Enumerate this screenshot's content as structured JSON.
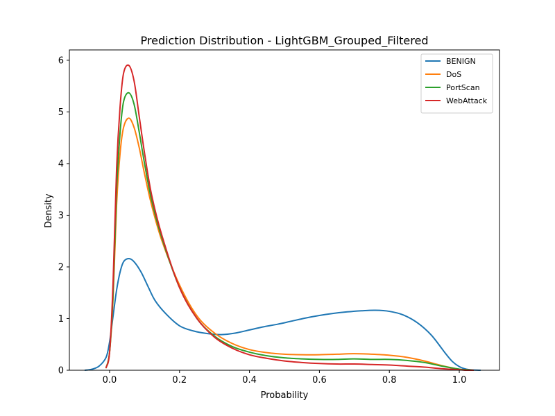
{
  "chart_data": {
    "type": "line",
    "title": "Prediction Distribution - LightGBM_Grouped_Filtered",
    "xlabel": "Probability",
    "ylabel": "Density",
    "xlim": [
      -0.115,
      1.115
    ],
    "ylim": [
      0,
      6.2
    ],
    "xticks": [
      0.0,
      0.2,
      0.4,
      0.6,
      0.8,
      1.0
    ],
    "xtick_labels": [
      "0.0",
      "0.2",
      "0.4",
      "0.6",
      "0.8",
      "1.0"
    ],
    "yticks": [
      0,
      1,
      2,
      3,
      4,
      5,
      6
    ],
    "ytick_labels": [
      "0",
      "1",
      "2",
      "3",
      "4",
      "5",
      "6"
    ],
    "grid": false,
    "legend_position": "top-right",
    "series": [
      {
        "name": "BENIGN",
        "color": "#1f77b4",
        "x": [
          -0.07,
          -0.05,
          -0.03,
          -0.01,
          0.0,
          0.01,
          0.02,
          0.03,
          0.04,
          0.055,
          0.07,
          0.09,
          0.11,
          0.13,
          0.16,
          0.2,
          0.24,
          0.28,
          0.32,
          0.36,
          0.4,
          0.44,
          0.48,
          0.52,
          0.56,
          0.6,
          0.64,
          0.68,
          0.72,
          0.76,
          0.8,
          0.84,
          0.88,
          0.92,
          0.96,
          0.98,
          1.0,
          1.02,
          1.04,
          1.06
        ],
        "y": [
          0.0,
          0.02,
          0.08,
          0.25,
          0.55,
          1.05,
          1.55,
          1.9,
          2.1,
          2.16,
          2.1,
          1.9,
          1.62,
          1.35,
          1.1,
          0.86,
          0.76,
          0.71,
          0.69,
          0.72,
          0.78,
          0.84,
          0.89,
          0.95,
          1.01,
          1.06,
          1.1,
          1.13,
          1.15,
          1.16,
          1.14,
          1.07,
          0.92,
          0.68,
          0.33,
          0.17,
          0.07,
          0.02,
          0.005,
          0.0
        ]
      },
      {
        "name": "DoS",
        "color": "#ff7f0e",
        "x": [
          -0.01,
          0.0,
          0.01,
          0.02,
          0.03,
          0.04,
          0.055,
          0.07,
          0.085,
          0.1,
          0.12,
          0.15,
          0.2,
          0.25,
          0.3,
          0.35,
          0.4,
          0.45,
          0.5,
          0.55,
          0.6,
          0.65,
          0.7,
          0.75,
          0.8,
          0.85,
          0.9,
          0.95,
          1.0,
          1.02,
          1.04
        ],
        "y": [
          0.05,
          0.35,
          1.4,
          3.2,
          4.2,
          4.7,
          4.88,
          4.7,
          4.3,
          3.8,
          3.2,
          2.5,
          1.65,
          1.05,
          0.72,
          0.52,
          0.4,
          0.34,
          0.31,
          0.3,
          0.3,
          0.31,
          0.32,
          0.31,
          0.29,
          0.25,
          0.18,
          0.09,
          0.02,
          0.01,
          0.0
        ]
      },
      {
        "name": "PortScan",
        "color": "#2ca02c",
        "x": [
          -0.01,
          0.0,
          0.01,
          0.02,
          0.03,
          0.04,
          0.055,
          0.07,
          0.085,
          0.1,
          0.12,
          0.15,
          0.2,
          0.25,
          0.3,
          0.35,
          0.4,
          0.45,
          0.5,
          0.55,
          0.6,
          0.65,
          0.7,
          0.75,
          0.8,
          0.85,
          0.9,
          0.95,
          1.0,
          1.02,
          1.04
        ],
        "y": [
          0.05,
          0.35,
          1.5,
          3.5,
          4.6,
          5.2,
          5.37,
          5.15,
          4.6,
          4.0,
          3.3,
          2.55,
          1.6,
          1.0,
          0.66,
          0.46,
          0.35,
          0.28,
          0.24,
          0.22,
          0.21,
          0.21,
          0.22,
          0.21,
          0.21,
          0.19,
          0.15,
          0.08,
          0.02,
          0.01,
          0.0
        ]
      },
      {
        "name": "WebAttack",
        "color": "#d62728",
        "x": [
          -0.01,
          0.0,
          0.01,
          0.02,
          0.03,
          0.04,
          0.055,
          0.07,
          0.085,
          0.1,
          0.12,
          0.15,
          0.2,
          0.25,
          0.3,
          0.35,
          0.4,
          0.45,
          0.5,
          0.55,
          0.6,
          0.65,
          0.7,
          0.75,
          0.8,
          0.85,
          0.9,
          0.95,
          1.0,
          1.02,
          1.04
        ],
        "y": [
          0.05,
          0.35,
          1.7,
          3.9,
          5.1,
          5.75,
          5.9,
          5.6,
          4.9,
          4.2,
          3.4,
          2.6,
          1.6,
          1.0,
          0.64,
          0.43,
          0.3,
          0.23,
          0.18,
          0.15,
          0.13,
          0.12,
          0.12,
          0.11,
          0.1,
          0.08,
          0.06,
          0.03,
          0.01,
          0.0,
          0.0
        ]
      }
    ]
  }
}
